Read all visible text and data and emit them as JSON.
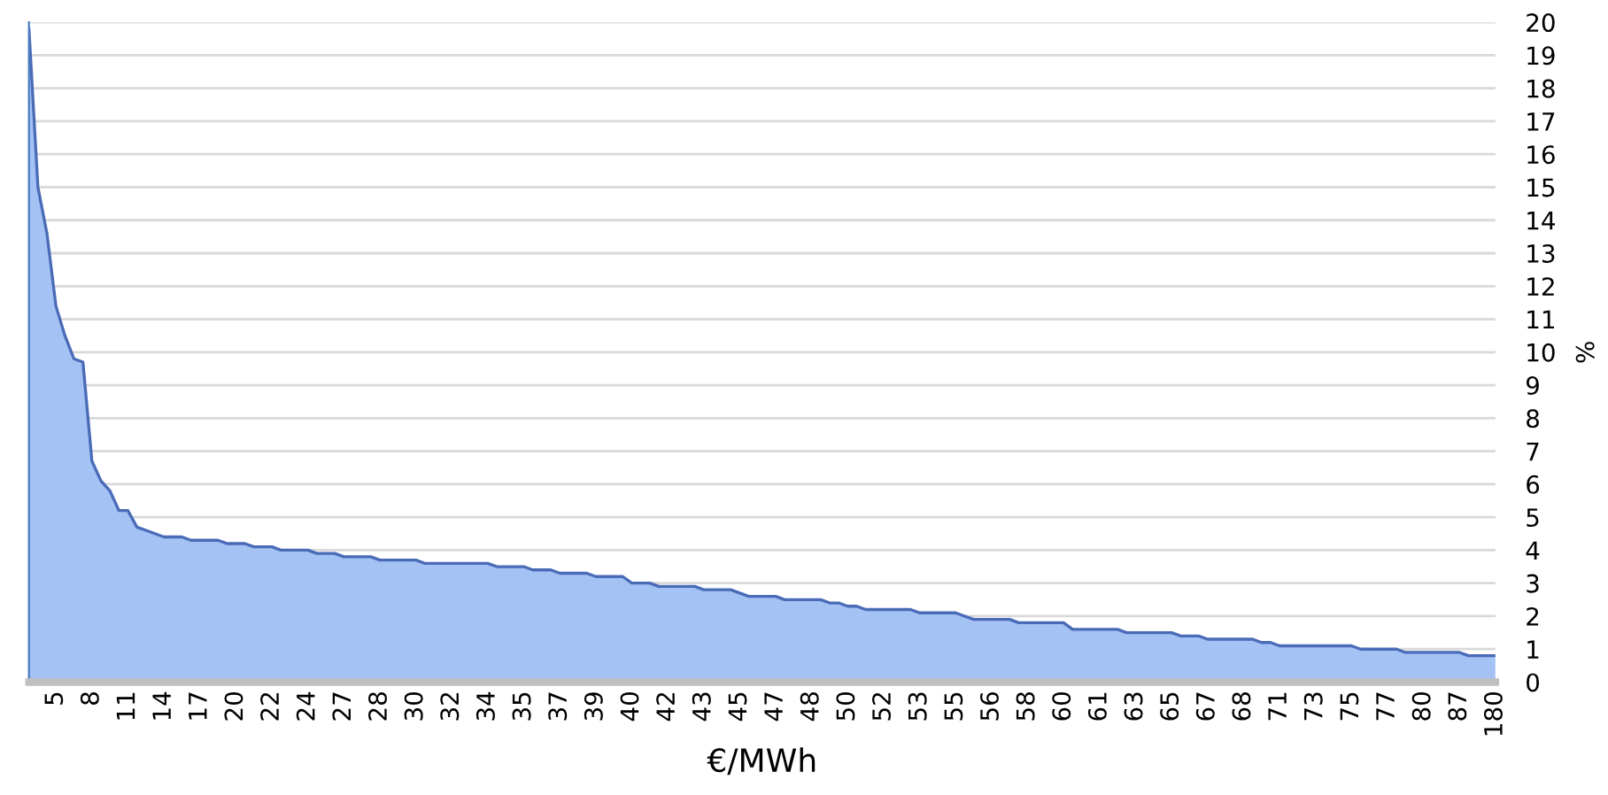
{
  "chart_data": {
    "type": "area",
    "xlabel": "€/MWh",
    "ylabel": "%",
    "categories": [
      null,
      null,
      null,
      "5",
      null,
      null,
      null,
      "8",
      null,
      null,
      null,
      "11",
      null,
      null,
      null,
      "14",
      null,
      null,
      null,
      "17",
      null,
      null,
      null,
      "20",
      null,
      null,
      null,
      "22",
      null,
      null,
      null,
      "24",
      null,
      null,
      null,
      "27",
      null,
      null,
      null,
      "28",
      null,
      null,
      null,
      "30",
      null,
      null,
      null,
      "32",
      null,
      null,
      null,
      "34",
      null,
      null,
      null,
      "35",
      null,
      null,
      null,
      "37",
      null,
      null,
      null,
      "39",
      null,
      null,
      null,
      "40",
      null,
      null,
      null,
      "42",
      null,
      null,
      null,
      "43",
      null,
      null,
      null,
      "45",
      null,
      null,
      null,
      "47",
      null,
      null,
      null,
      "48",
      null,
      null,
      null,
      "50",
      null,
      null,
      null,
      "52",
      null,
      null,
      null,
      "53",
      null,
      null,
      null,
      "55",
      null,
      null,
      null,
      "56",
      null,
      null,
      null,
      "58",
      null,
      null,
      null,
      "60",
      null,
      null,
      null,
      "61",
      null,
      null,
      null,
      "63",
      null,
      null,
      null,
      "65",
      null,
      null,
      null,
      "67",
      null,
      null,
      null,
      "68",
      null,
      null,
      null,
      "71",
      null,
      null,
      null,
      "73",
      null,
      null,
      null,
      "75",
      null,
      null,
      null,
      "77",
      null,
      null,
      null,
      "80",
      null,
      null,
      null,
      "87",
      null,
      null,
      null,
      "180"
    ],
    "series": [
      {
        "color": "#a4c2f4",
        "values": [
          19.8,
          15.0,
          13.6,
          11.4,
          10.5,
          9.8,
          9.7,
          6.7,
          6.1,
          5.8,
          5.2,
          5.2,
          4.7,
          4.6,
          4.5,
          4.4,
          4.4,
          4.4,
          4.3,
          4.3,
          4.3,
          4.3,
          4.2,
          4.2,
          4.2,
          4.1,
          4.1,
          4.1,
          4.0,
          4.0,
          4.0,
          4.0,
          3.9,
          3.9,
          3.9,
          3.8,
          3.8,
          3.8,
          3.8,
          3.7,
          3.7,
          3.7,
          3.7,
          3.7,
          3.6,
          3.6,
          3.6,
          3.6,
          3.6,
          3.6,
          3.6,
          3.6,
          3.5,
          3.5,
          3.5,
          3.5,
          3.4,
          3.4,
          3.4,
          3.3,
          3.3,
          3.3,
          3.3,
          3.2,
          3.2,
          3.2,
          3.2,
          3.0,
          3.0,
          3.0,
          2.9,
          2.9,
          2.9,
          2.9,
          2.9,
          2.8,
          2.8,
          2.8,
          2.8,
          2.7,
          2.6,
          2.6,
          2.6,
          2.6,
          2.5,
          2.5,
          2.5,
          2.5,
          2.5,
          2.4,
          2.4,
          2.3,
          2.3,
          2.2,
          2.2,
          2.2,
          2.2,
          2.2,
          2.2,
          2.1,
          2.1,
          2.1,
          2.1,
          2.1,
          2.0,
          1.9,
          1.9,
          1.9,
          1.9,
          1.9,
          1.8,
          1.8,
          1.8,
          1.8,
          1.8,
          1.8,
          1.6,
          1.6,
          1.6,
          1.6,
          1.6,
          1.6,
          1.5,
          1.5,
          1.5,
          1.5,
          1.5,
          1.5,
          1.4,
          1.4,
          1.4,
          1.3,
          1.3,
          1.3,
          1.3,
          1.3,
          1.3,
          1.2,
          1.2,
          1.1,
          1.1,
          1.1,
          1.1,
          1.1,
          1.1,
          1.1,
          1.1,
          1.1,
          1.0,
          1.0,
          1.0,
          1.0,
          1.0,
          0.9,
          0.9,
          0.9,
          0.9,
          0.9,
          0.9,
          0.9,
          0.8,
          0.8,
          0.8,
          0.8
        ]
      }
    ],
    "ylim": [
      0,
      20
    ],
    "yticks": [
      0,
      1,
      2,
      3,
      4,
      5,
      6,
      7,
      8,
      9,
      10,
      11,
      12,
      13,
      14,
      15,
      16,
      17,
      18,
      19,
      20
    ],
    "grid": "y",
    "legend": false
  }
}
